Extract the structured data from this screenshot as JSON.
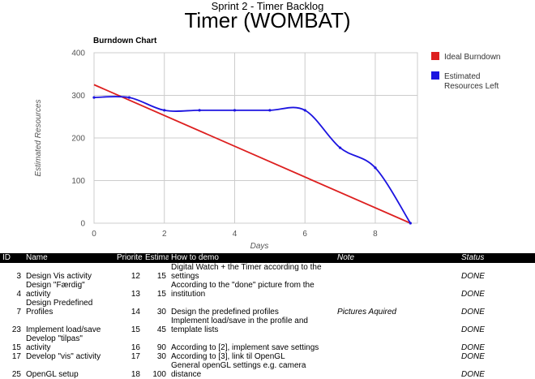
{
  "header": {
    "subtitle": "Sprint 2 - Timer Backlog",
    "title": "Timer (WOMBAT)"
  },
  "chart_data": {
    "type": "line",
    "title": "Burndown Chart",
    "xlabel": "Days",
    "ylabel": "Estimated Resources",
    "xlim": [
      0,
      9.2
    ],
    "ylim": [
      0,
      400
    ],
    "xticks": [
      0,
      2,
      4,
      6,
      8
    ],
    "yticks": [
      0,
      100,
      200,
      300,
      400
    ],
    "grid": true,
    "legend_position": "right",
    "series": [
      {
        "name": "Ideal Burndown",
        "color": "#dd1f1f",
        "x": [
          0,
          9
        ],
        "y": [
          325,
          0
        ]
      },
      {
        "name": "Estimated Resources Left",
        "color": "#1c14e0",
        "x": [
          0,
          1,
          2,
          3,
          4,
          5,
          6,
          7,
          8,
          9
        ],
        "y": [
          295,
          295,
          265,
          265,
          265,
          265,
          265,
          177,
          130,
          0
        ]
      }
    ]
  },
  "table": {
    "columns": [
      "ID",
      "Name",
      "Priorite",
      "Estima",
      "How to demo",
      "Note",
      "Status"
    ],
    "rows": [
      {
        "id": "3",
        "name": [
          "Design Vis activity"
        ],
        "priority": "12",
        "estimate": "15",
        "demo": [
          "Digital Watch + the Timer according to the",
          "settings"
        ],
        "note": "",
        "status": "DONE"
      },
      {
        "id": "4",
        "name": [
          "Design \"Færdig\"",
          "activity"
        ],
        "priority": "13",
        "estimate": "15",
        "demo": [
          "According to the \"done\" picture from the",
          "institution"
        ],
        "note": "",
        "status": "DONE"
      },
      {
        "id": "7",
        "name": [
          "Design Predefined",
          "Profiles"
        ],
        "priority": "14",
        "estimate": "30",
        "demo": [
          "Design the predefined profiles"
        ],
        "note": "Pictures Aquired",
        "status": "DONE"
      },
      {
        "id": "23",
        "name": [
          "Implement load/save"
        ],
        "priority": "15",
        "estimate": "45",
        "demo": [
          "Implement load/save in the profile and",
          "template lists"
        ],
        "note": "",
        "status": "DONE"
      },
      {
        "id": "15",
        "name": [
          "Develop \"tilpas\"",
          "activity"
        ],
        "priority": "16",
        "estimate": "90",
        "demo": [
          "According to [2], implement save settings"
        ],
        "note": "",
        "status": "DONE"
      },
      {
        "id": "17",
        "name": [
          "Develop \"vis\" activity"
        ],
        "priority": "17",
        "estimate": "30",
        "demo": [
          "According to [3], link til OpenGL"
        ],
        "note": "",
        "status": "DONE"
      },
      {
        "id": "25",
        "name": [
          "OpenGL setup"
        ],
        "priority": "18",
        "estimate": "100",
        "demo": [
          "General openGL settings e.g. camera",
          "distance"
        ],
        "note": "",
        "status": "DONE"
      }
    ]
  }
}
